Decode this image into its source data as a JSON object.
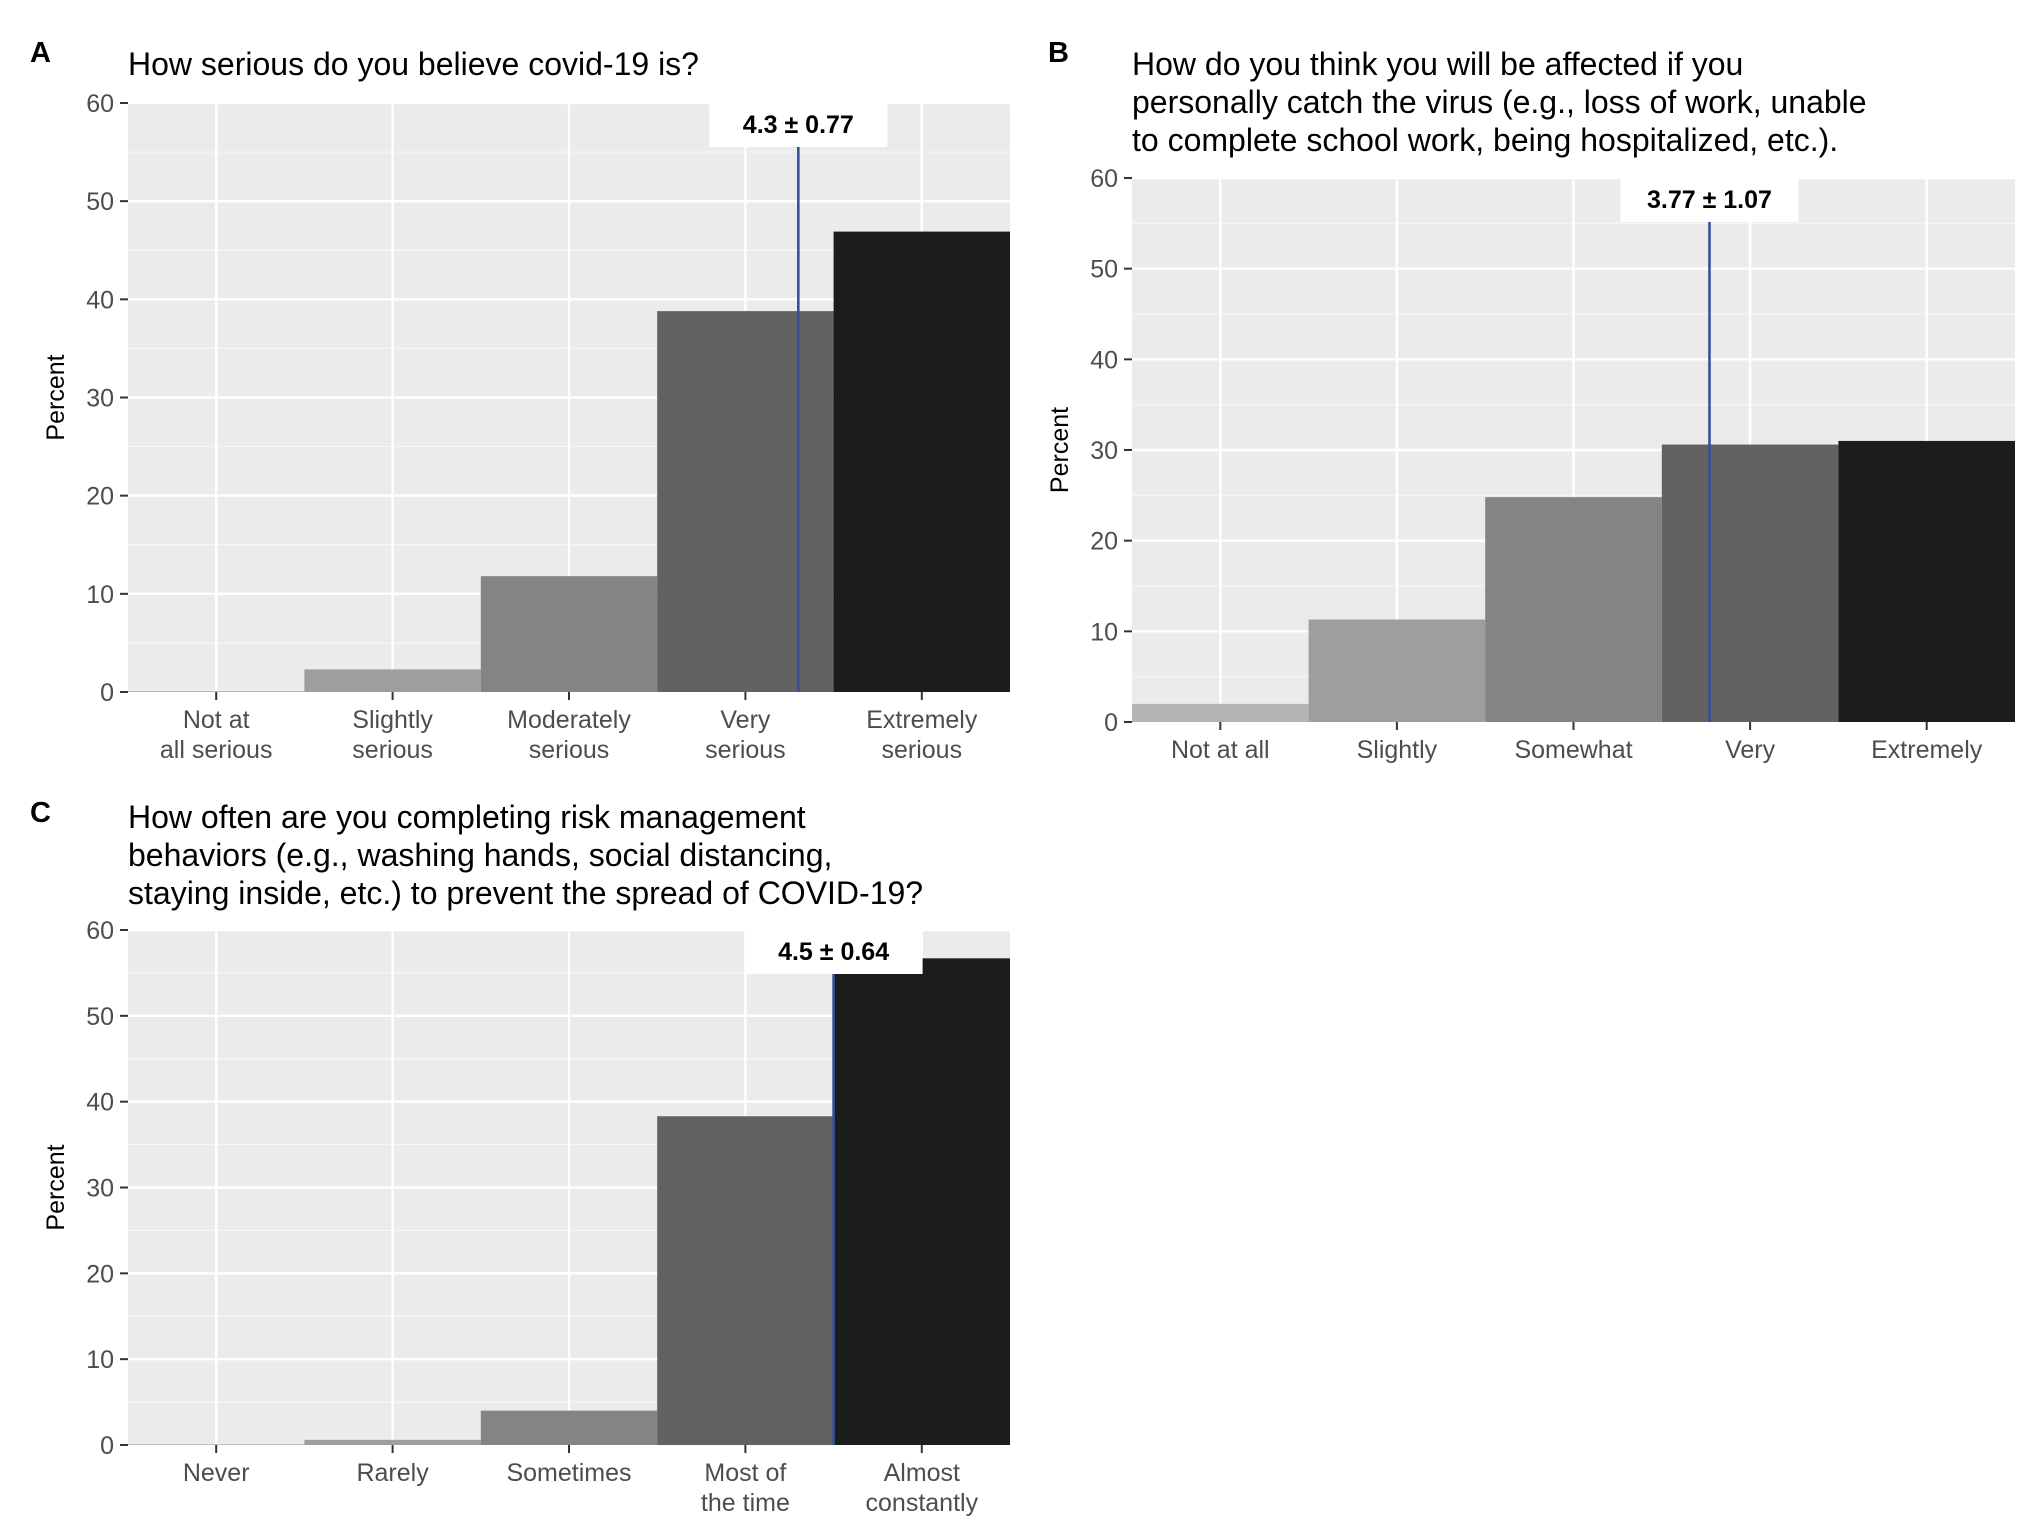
{
  "chart_data": [
    {
      "type": "bar",
      "panel": "A",
      "title": "How serious do you believe covid-19 is?",
      "categories": [
        "Not at\nall serious",
        "Slightly\nserious",
        "Moderately\nserious",
        "Very\nserious",
        "Extremely\nserious"
      ],
      "values": [
        0.1,
        2.3,
        11.8,
        38.8,
        46.9
      ],
      "colors": [
        "#b3b3b3",
        "#9e9e9e",
        "#848484",
        "#626262",
        "#1b1c1c"
      ],
      "ylabel": "Percent",
      "xlabel": "",
      "ylim": [
        0,
        60
      ],
      "yticks": [
        0,
        10,
        20,
        30,
        40,
        50,
        60
      ],
      "mean": 4.3,
      "mean_label": "4.3  ±  0.77",
      "mean_line_color": "#3a4f9a",
      "grid": true
    },
    {
      "type": "bar",
      "panel": "B",
      "title": "How do you think you will be affected if you\npersonally catch the virus (e.g., loss of work, unable\nto complete school work, being hospitalized, etc.).",
      "categories": [
        "Not at all",
        "Slightly",
        "Somewhat",
        "Very",
        "Extremely"
      ],
      "values": [
        2.0,
        11.3,
        24.8,
        30.6,
        31.0
      ],
      "colors": [
        "#b3b3b3",
        "#9e9e9e",
        "#848484",
        "#626262",
        "#1b1c1c"
      ],
      "ylabel": "Percent",
      "xlabel": "",
      "ylim": [
        0,
        60
      ],
      "yticks": [
        0,
        10,
        20,
        30,
        40,
        50,
        60
      ],
      "mean": 3.77,
      "mean_label": "3.77  ±  1.07",
      "mean_line_color": "#3a4f9a",
      "grid": true
    },
    {
      "type": "bar",
      "panel": "C",
      "title": "How often are you completing risk management\nbehaviors (e.g., washing hands, social distancing,\nstaying inside, etc.) to prevent the spread of COVID-19?",
      "categories": [
        "Never",
        "Rarely",
        "Sometimes",
        "Most of\nthe time",
        "Almost\nconstantly"
      ],
      "values": [
        0.1,
        0.6,
        4.0,
        38.3,
        56.7
      ],
      "colors": [
        "#b3b3b3",
        "#9e9e9e",
        "#848484",
        "#626262",
        "#1b1c1c"
      ],
      "ylabel": "Percent",
      "xlabel": "",
      "ylim": [
        0,
        60
      ],
      "yticks": [
        0,
        10,
        20,
        30,
        40,
        50,
        60
      ],
      "mean": 4.5,
      "mean_label": "4.5  ±  0.64",
      "mean_line_color": "#3a4f9a",
      "grid": true
    }
  ]
}
